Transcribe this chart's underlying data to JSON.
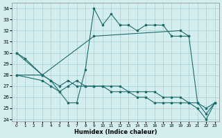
{
  "xlabel": "Humidex (Indice chaleur)",
  "bg_color": "#d4eef0",
  "grid_color": "#a8cdd0",
  "line_color": "#1a6b6b",
  "xlim": [
    -0.5,
    23.5
  ],
  "ylim": [
    23.8,
    34.5
  ],
  "yticks": [
    24,
    25,
    26,
    27,
    28,
    29,
    30,
    31,
    32,
    33,
    34
  ],
  "xticks": [
    0,
    1,
    2,
    3,
    4,
    5,
    6,
    7,
    8,
    9,
    10,
    11,
    12,
    13,
    14,
    15,
    16,
    17,
    18,
    19,
    20,
    21,
    22,
    23
  ],
  "line1_x": [
    0,
    1,
    3,
    4,
    5,
    6,
    7,
    8,
    9,
    10,
    11,
    12,
    13,
    14,
    15,
    16,
    17,
    18,
    19,
    20,
    21,
    22,
    23
  ],
  "line1_y": [
    30,
    29.5,
    28,
    27.5,
    26.5,
    25.5,
    25.5,
    28.5,
    34,
    32.5,
    33.5,
    32.5,
    32.5,
    32.0,
    32.5,
    32.5,
    32.5,
    31.5,
    31.5,
    31.5,
    25.5,
    25.0,
    25.5
  ],
  "line2_x": [
    0,
    3,
    9,
    19,
    20
  ],
  "line2_y": [
    30,
    28.0,
    31.5,
    32.0,
    31.5
  ],
  "line3_x": [
    0,
    3,
    4,
    5,
    6,
    7,
    8,
    9,
    10,
    11,
    12,
    13,
    14,
    15,
    16,
    17,
    18,
    19,
    20,
    21,
    22,
    23
  ],
  "line3_y": [
    28.0,
    28.0,
    27.5,
    27.0,
    27.5,
    27.0,
    27.0,
    27.0,
    27.0,
    27.0,
    27.0,
    26.5,
    26.5,
    26.5,
    26.5,
    26.0,
    26.0,
    26.0,
    25.5,
    25.5,
    24.5,
    25.5
  ],
  "line4_x": [
    0,
    3,
    4,
    5,
    6,
    7,
    8,
    9,
    10,
    11,
    12,
    13,
    14,
    15,
    16,
    17,
    18,
    19,
    20,
    21,
    22,
    23
  ],
  "line4_y": [
    28.0,
    27.5,
    27.0,
    26.5,
    27.0,
    27.5,
    27.0,
    27.0,
    27.0,
    26.5,
    26.5,
    26.5,
    26.0,
    26.0,
    25.5,
    25.5,
    25.5,
    25.5,
    25.5,
    25.0,
    24.0,
    25.5
  ]
}
